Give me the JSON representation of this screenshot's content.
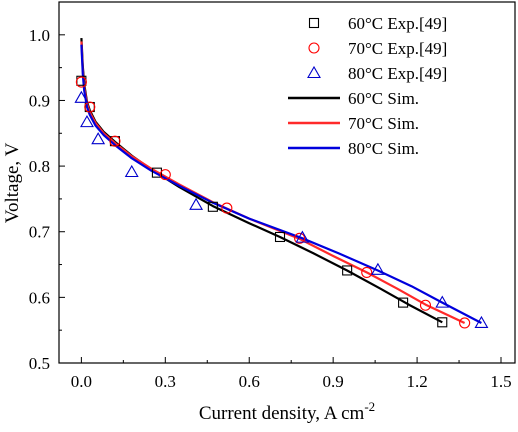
{
  "chart_data": {
    "type": "scatter",
    "title": "",
    "xlabel": "Current density, A cm",
    "xlabel_superscript": "-2",
    "ylabel": "Voltage, V",
    "xlim": [
      -0.08,
      1.55
    ],
    "ylim": [
      0.5,
      1.05
    ],
    "xticks": [
      0.0,
      0.3,
      0.6,
      0.9,
      1.2,
      1.5
    ],
    "xtick_labels": [
      "0.0",
      "0.3",
      "0.6",
      "0.9",
      "1.2",
      "1.5"
    ],
    "yticks": [
      0.5,
      0.6,
      0.7,
      0.8,
      0.9,
      1.0
    ],
    "ytick_labels": [
      "0.5",
      "0.6",
      "0.7",
      "0.8",
      "0.9",
      "1.0"
    ],
    "grid": false,
    "legend_position": "top-right",
    "series": [
      {
        "name": "60°C Exp.[49]",
        "kind": "points",
        "marker": "square",
        "color": "#000000",
        "x": [
          0.0,
          0.03,
          0.12,
          0.27,
          0.47,
          0.71,
          0.95,
          1.15,
          1.29
        ],
        "y": [
          0.93,
          0.89,
          0.838,
          0.79,
          0.738,
          0.692,
          0.641,
          0.592,
          0.562
        ]
      },
      {
        "name": "70°C Exp.[49]",
        "kind": "points",
        "marker": "circle",
        "color": "#ff0000",
        "x": [
          0.0,
          0.03,
          0.12,
          0.3,
          0.52,
          0.78,
          1.02,
          1.23,
          1.37
        ],
        "y": [
          0.928,
          0.89,
          0.838,
          0.787,
          0.736,
          0.69,
          0.638,
          0.588,
          0.561
        ]
      },
      {
        "name": "80°C Exp.[49]",
        "kind": "points",
        "marker": "triangle",
        "color": "#0000cc",
        "x": [
          0.0,
          0.02,
          0.06,
          0.18,
          0.41,
          0.79,
          1.06,
          1.29,
          1.43
        ],
        "y": [
          0.904,
          0.867,
          0.841,
          0.791,
          0.741,
          0.691,
          0.642,
          0.592,
          0.561
        ]
      },
      {
        "name": "60°C Sim.",
        "kind": "line",
        "color": "#000000",
        "x": [
          0.0,
          0.005,
          0.01,
          0.02,
          0.03,
          0.05,
          0.08,
          0.12,
          0.18,
          0.25,
          0.35,
          0.47,
          0.6,
          0.71,
          0.83,
          0.95,
          1.07,
          1.17,
          1.29
        ],
        "y": [
          0.995,
          0.952,
          0.925,
          0.898,
          0.885,
          0.868,
          0.852,
          0.837,
          0.816,
          0.795,
          0.768,
          0.739,
          0.713,
          0.692,
          0.667,
          0.641,
          0.613,
          0.589,
          0.562
        ]
      },
      {
        "name": "70°C Sim.",
        "kind": "line",
        "color": "#ff2a2a",
        "x": [
          0.0,
          0.005,
          0.01,
          0.02,
          0.03,
          0.05,
          0.08,
          0.12,
          0.18,
          0.25,
          0.35,
          0.47,
          0.6,
          0.78,
          0.9,
          1.02,
          1.13,
          1.23,
          1.37
        ],
        "y": [
          0.99,
          0.945,
          0.92,
          0.895,
          0.882,
          0.866,
          0.85,
          0.835,
          0.815,
          0.796,
          0.772,
          0.745,
          0.72,
          0.689,
          0.663,
          0.638,
          0.613,
          0.589,
          0.561
        ]
      },
      {
        "name": "80°C Sim.",
        "kind": "line",
        "color": "#0000dd",
        "x": [
          0.0,
          0.005,
          0.01,
          0.02,
          0.03,
          0.05,
          0.08,
          0.12,
          0.18,
          0.25,
          0.35,
          0.47,
          0.6,
          0.79,
          0.92,
          1.06,
          1.18,
          1.29,
          1.43
        ],
        "y": [
          0.985,
          0.94,
          0.915,
          0.89,
          0.878,
          0.862,
          0.847,
          0.832,
          0.812,
          0.793,
          0.77,
          0.744,
          0.72,
          0.69,
          0.667,
          0.641,
          0.617,
          0.592,
          0.561
        ]
      }
    ]
  }
}
